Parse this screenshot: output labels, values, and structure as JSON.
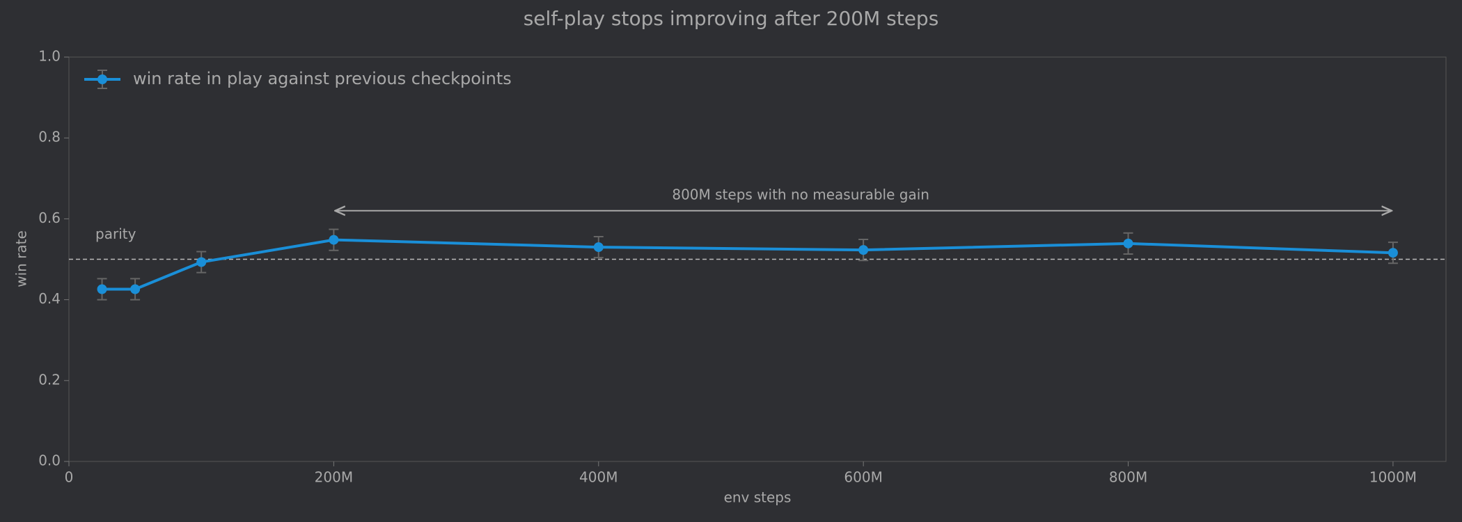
{
  "chart_data": {
    "type": "line",
    "title": "self-play stops improving after 200M steps",
    "xlabel": "env steps",
    "ylabel": "win rate",
    "x": [
      25000000,
      50000000,
      100000000,
      200000000,
      400000000,
      600000000,
      800000000,
      1000000000
    ],
    "series": [
      {
        "name": "win rate in play against previous checkpoints",
        "color": "#1a8fd8",
        "values": [
          0.426,
          0.426,
          0.493,
          0.548,
          0.53,
          0.523,
          0.539,
          0.516
        ],
        "errors": [
          0.026,
          0.026,
          0.026,
          0.026,
          0.026,
          0.026,
          0.026,
          0.026
        ]
      }
    ],
    "xlim": [
      0,
      1040000000
    ],
    "xticks": [
      0,
      {
        "value": 200000000,
        "label": "200M"
      },
      {
        "value": 400000000,
        "label": "400M"
      },
      {
        "value": 600000000,
        "label": "600M"
      },
      {
        "value": 800000000,
        "label": "800M"
      },
      {
        "value": 1000000000,
        "label": "1000M"
      }
    ],
    "ylim": [
      0,
      1
    ],
    "yticks": [
      {
        "value": 0,
        "label": "0.0"
      },
      0.2,
      0.4,
      0.6,
      0.8,
      {
        "value": 1,
        "label": "1.0"
      }
    ],
    "hline": {
      "y": 0.5,
      "label": "parity"
    },
    "annotation": {
      "text": "800M steps with no measurable gain",
      "x1": 200000000,
      "x2": 1000000000,
      "y": 0.62
    },
    "legend": "upper left"
  }
}
